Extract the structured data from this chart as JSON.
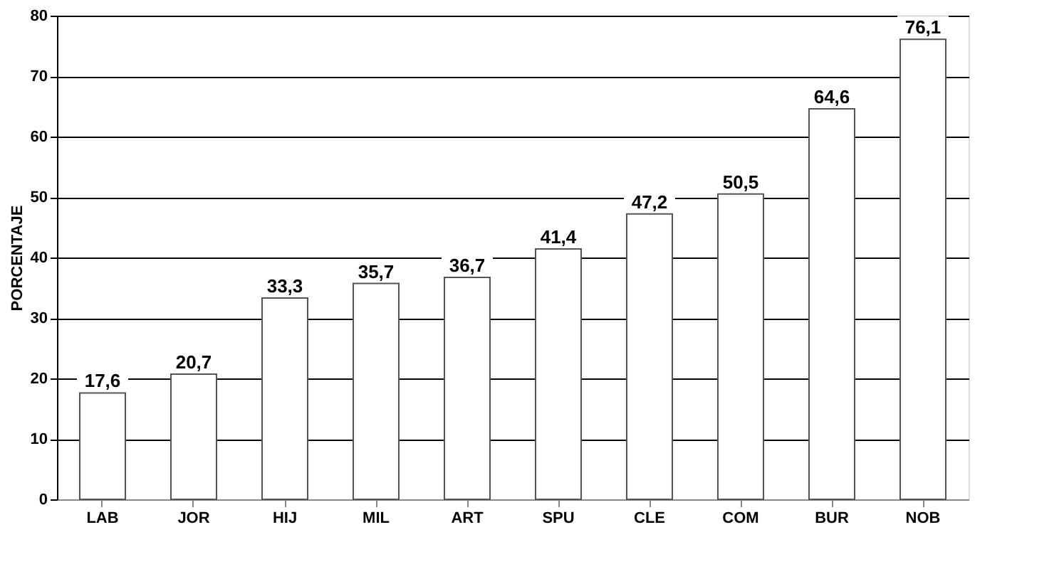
{
  "chart_data": {
    "type": "bar",
    "ylabel": "PORCENTAJE",
    "categories": [
      "LAB",
      "JOR",
      "HIJ",
      "MIL",
      "ART",
      "SPU",
      "CLE",
      "COM",
      "BUR",
      "NOB"
    ],
    "values": [
      17.6,
      20.7,
      33.3,
      35.7,
      36.7,
      41.4,
      47.2,
      50.5,
      64.6,
      76.1
    ],
    "value_labels": [
      "17,6",
      "20,7",
      "33,3",
      "35,7",
      "36,7",
      "41,4",
      "47,2",
      "50,5",
      "64,6",
      "76,1"
    ],
    "color": "#ffffff",
    "ylim": [
      0,
      80
    ],
    "yticks": [
      0,
      10,
      20,
      30,
      40,
      50,
      60,
      70,
      80
    ],
    "grid": "y"
  }
}
